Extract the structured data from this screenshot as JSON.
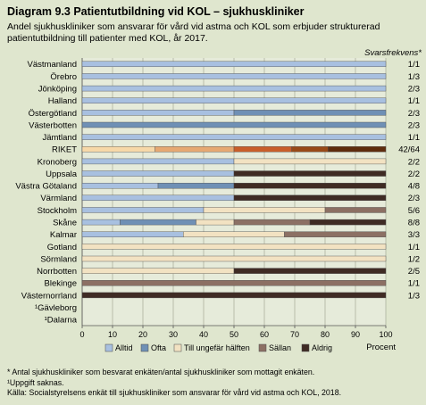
{
  "title": "Diagram 9.3 Patientutbildning vid KOL – sjukhuskliniker",
  "subtitle": "Andel sjukhuskliniker som ansvarar för vård vid astma och KOL som erbjuder strukturerad patientutbildning till patienter med KOL, år 2017.",
  "response_header": "Svarsfrekvens*",
  "notes": [
    "* Antal sjukhuskliniker som besvarat enkäten/antal sjukhuskliniker som mottagit enkäten.",
    "¹Uppgift saknas.",
    "Källa: Socialstyrelsens enkät till sjukhuskliniker som ansvarar för vård vid astma och KOL, 2018."
  ],
  "chart_data": {
    "type": "bar",
    "orientation": "horizontal",
    "stacked": true,
    "xlabel": "Procent",
    "xlim": [
      0,
      100
    ],
    "xticks": [
      0,
      10,
      20,
      30,
      40,
      50,
      60,
      70,
      80,
      90,
      100
    ],
    "legend_position": "bottom",
    "colors": {
      "Alltid": "#a8c0e0",
      "Ofta": "#6f90b5",
      "Till ungefär hälften": "#f2e2c2",
      "Sällan": "#8c7064",
      "Aldrig": "#3f2b24",
      "RIKET": [
        "#f7d8a8",
        "#e6a872",
        "#c85e2a",
        "#984a18",
        "#5e2c0e"
      ]
    },
    "categories": [
      "Västmanland",
      "Örebro",
      "Jönköping",
      "Halland",
      "Östergötland",
      "Västerbotten",
      "Jämtland",
      "RIKET",
      "Kronoberg",
      "Uppsala",
      "Västra Götaland",
      "Värmland",
      "Stockholm",
      "Skåne",
      "Kalmar",
      "Gotland",
      "Sörmland",
      "Norrbotten",
      "Blekinge",
      "Västernorrland",
      "¹Gävleborg",
      "¹Dalarna"
    ],
    "response_rate": [
      "1/1",
      "1/3",
      "2/3",
      "1/1",
      "2/3",
      "2/3",
      "1/1",
      "42/64",
      "2/2",
      "2/2",
      "4/8",
      "2/3",
      "5/6",
      "8/8",
      "3/3",
      "1/1",
      "1/2",
      "2/5",
      "1/1",
      "1/3",
      "",
      ""
    ],
    "series": [
      {
        "name": "Alltid",
        "values": [
          100,
          100,
          100,
          100,
          50,
          0,
          100,
          24,
          50,
          50,
          25,
          50,
          40,
          12.5,
          33.3,
          0,
          0,
          0,
          0,
          0,
          0,
          0
        ]
      },
      {
        "name": "Ofta",
        "values": [
          0,
          0,
          0,
          0,
          50,
          100,
          0,
          26,
          0,
          0,
          25,
          0,
          0,
          25,
          0,
          0,
          0,
          0,
          0,
          0,
          0,
          0
        ]
      },
      {
        "name": "Till ungefär hälften",
        "values": [
          0,
          0,
          0,
          0,
          0,
          0,
          0,
          19,
          50,
          0,
          0,
          0,
          40,
          12.5,
          33.3,
          100,
          100,
          50,
          0,
          0,
          0,
          0
        ]
      },
      {
        "name": "Sällan",
        "values": [
          0,
          0,
          0,
          0,
          0,
          0,
          0,
          12,
          0,
          0,
          0,
          0,
          20,
          25,
          33.4,
          0,
          0,
          0,
          100,
          0,
          0,
          0
        ]
      },
      {
        "name": "Aldrig",
        "values": [
          0,
          0,
          0,
          0,
          0,
          0,
          0,
          19,
          0,
          50,
          50,
          50,
          0,
          25,
          0,
          0,
          0,
          50,
          0,
          100,
          0,
          0
        ]
      }
    ]
  }
}
